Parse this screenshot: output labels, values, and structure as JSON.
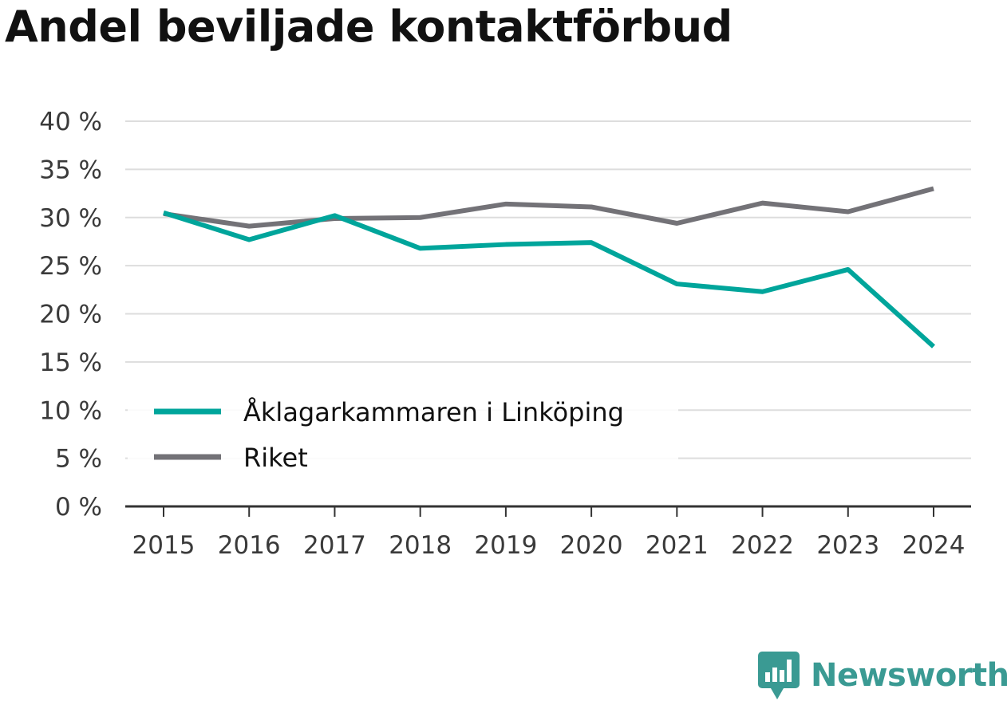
{
  "chart_data": {
    "type": "line",
    "title": "Andel beviljade kontaktförbud",
    "categories": [
      "2015",
      "2016",
      "2017",
      "2018",
      "2019",
      "2020",
      "2021",
      "2022",
      "2023",
      "2024"
    ],
    "series": [
      {
        "name": "Åklagarkammaren i Linköping",
        "color": "#00a59b",
        "values": [
          30.5,
          27.7,
          30.2,
          26.8,
          27.2,
          27.4,
          23.1,
          22.3,
          24.6,
          16.6
        ]
      },
      {
        "name": "Riket",
        "color": "#737277",
        "values": [
          30.4,
          29.1,
          29.9,
          30.0,
          31.4,
          31.1,
          29.4,
          31.5,
          30.6,
          33.0
        ]
      }
    ],
    "ylim": [
      0,
      40
    ],
    "yticks": [
      0,
      5,
      10,
      15,
      20,
      25,
      30,
      35,
      40
    ],
    "ytick_labels": [
      "0 %",
      "5 %",
      "10 %",
      "15 %",
      "20 %",
      "25 %",
      "30 %",
      "35 %",
      "40 %"
    ],
    "grid": true,
    "legend_position": "bottom-left",
    "xlabel": "",
    "ylabel": ""
  },
  "brand": {
    "name": "Newsworthy",
    "color": "#3a9a93",
    "icon": "newsworthy-logo-icon"
  }
}
